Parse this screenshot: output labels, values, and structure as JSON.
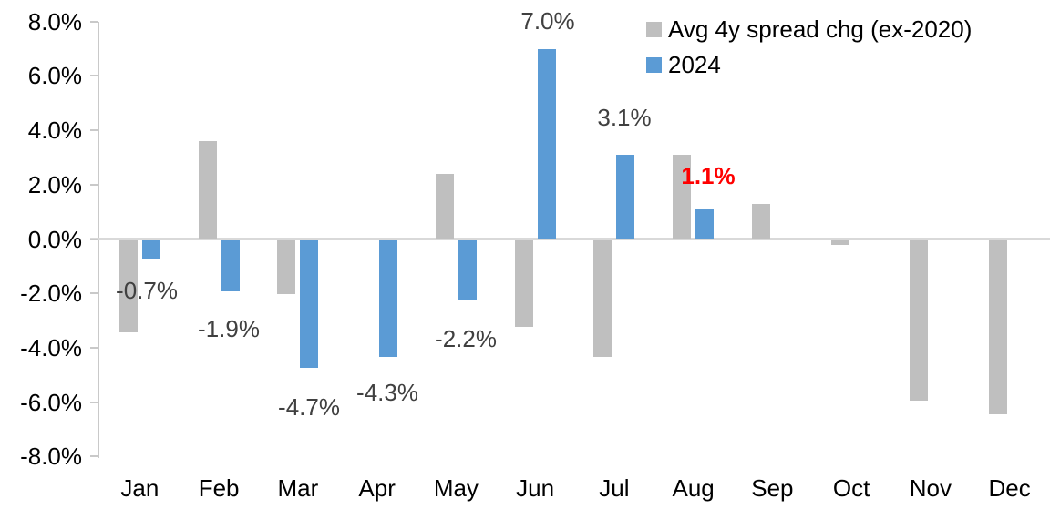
{
  "chart_data": {
    "type": "bar",
    "title": "",
    "xlabel": "",
    "ylabel": "",
    "categories": [
      "Jan",
      "Feb",
      "Mar",
      "Apr",
      "May",
      "Jun",
      "Jul",
      "Aug",
      "Sep",
      "Oct",
      "Nov",
      "Dec"
    ],
    "series": [
      {
        "name": "Avg 4y spread chg (ex-2020)",
        "color": "#bfbfbf",
        "values": [
          -3.4,
          3.6,
          -2.0,
          0.0,
          2.4,
          -3.2,
          -4.3,
          3.1,
          1.3,
          -0.2,
          -5.9,
          -6.4
        ]
      },
      {
        "name": "2024",
        "color": "#5b9bd5",
        "values": [
          -0.7,
          -1.9,
          -4.7,
          -4.3,
          -2.2,
          7.0,
          3.1,
          1.1,
          null,
          null,
          null,
          null
        ]
      }
    ],
    "data_labels": [
      {
        "month": "Jan",
        "text": "-0.7%",
        "color": "#404040",
        "bold": false
      },
      {
        "month": "Feb",
        "text": "-1.9%",
        "color": "#404040",
        "bold": false
      },
      {
        "month": "Mar",
        "text": "-4.7%",
        "color": "#404040",
        "bold": false
      },
      {
        "month": "Apr",
        "text": "-4.3%",
        "color": "#404040",
        "bold": false
      },
      {
        "month": "May",
        "text": "-2.2%",
        "color": "#404040",
        "bold": false
      },
      {
        "month": "Jun",
        "text": "7.0%",
        "color": "#404040",
        "bold": false
      },
      {
        "month": "Jul",
        "text": "3.1%",
        "color": "#404040",
        "bold": false
      },
      {
        "month": "Aug",
        "text": "1.1%",
        "color": "#ff0000",
        "bold": true
      }
    ],
    "y_ticks": [
      "8.0%",
      "6.0%",
      "4.0%",
      "2.0%",
      "0.0%",
      "-2.0%",
      "-4.0%",
      "-6.0%",
      "-8.0%"
    ],
    "ylim": [
      -8,
      8
    ],
    "grid": "zero-line-only",
    "legend_position": "top-right"
  },
  "legend": {
    "items": [
      {
        "label": "Avg 4y spread chg (ex-2020)",
        "color": "#bfbfbf"
      },
      {
        "label": "2024",
        "color": "#5b9bd5"
      }
    ]
  }
}
